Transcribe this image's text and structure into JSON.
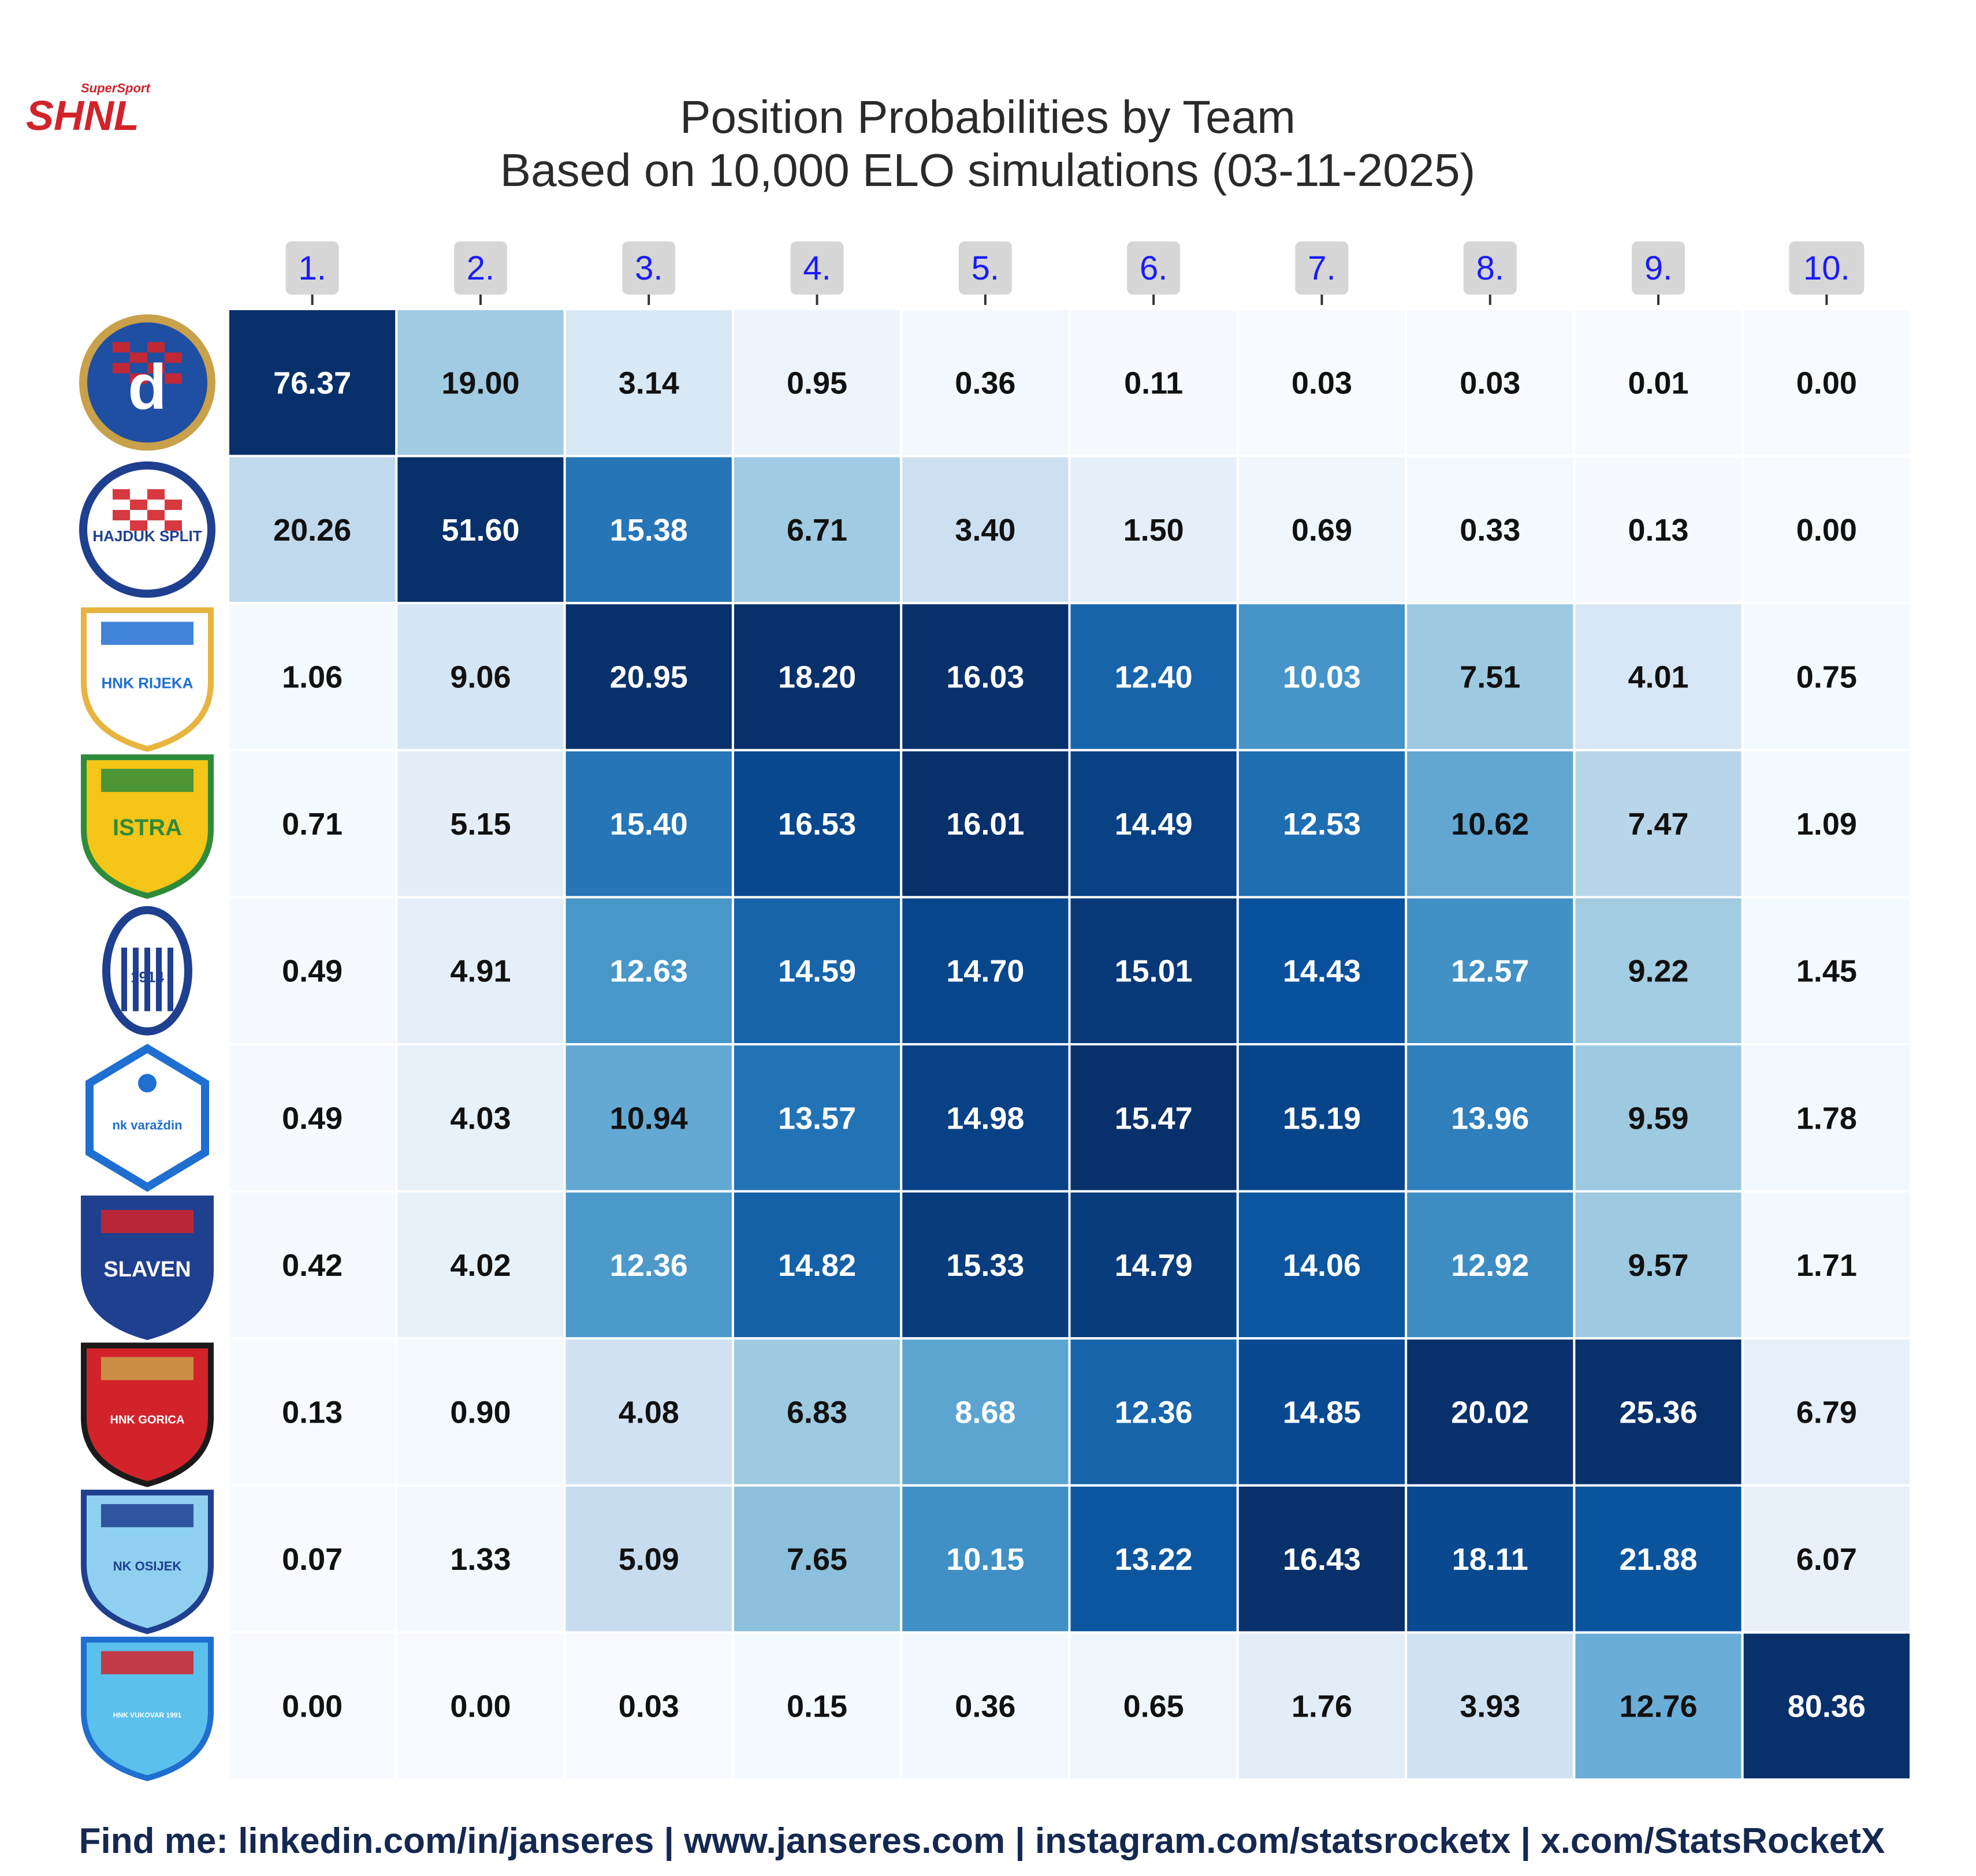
{
  "brand": {
    "logo_super": "SuperSport",
    "logo_main": "SHNL",
    "logo_color": "#d2232a"
  },
  "chart_data": {
    "type": "heatmap",
    "title": "Position Probabilities by Team",
    "subtitle": "Based on 10,000 ELO simulations (03-11-2025)",
    "columns": [
      "1.",
      "2.",
      "3.",
      "4.",
      "5.",
      "6.",
      "7.",
      "8.",
      "9.",
      "10."
    ],
    "rows": [
      {
        "team": "Dinamo Zagreb",
        "crest_text": "d",
        "values": [
          76.37,
          19.0,
          3.14,
          0.95,
          0.36,
          0.11,
          0.03,
          0.03,
          0.01,
          0.0
        ]
      },
      {
        "team": "Hajduk Split",
        "crest_text": "HAJDUK SPLIT",
        "values": [
          20.26,
          51.6,
          15.38,
          6.71,
          3.4,
          1.5,
          0.69,
          0.33,
          0.13,
          0.0
        ]
      },
      {
        "team": "HNK Rijeka",
        "crest_text": "HNK RIJEKA",
        "values": [
          1.06,
          9.06,
          20.95,
          18.2,
          16.03,
          12.4,
          10.03,
          7.51,
          4.01,
          0.75
        ]
      },
      {
        "team": "NK Istra 1961",
        "crest_text": "ISTRA",
        "values": [
          0.71,
          5.15,
          15.4,
          16.53,
          16.01,
          14.49,
          12.53,
          10.62,
          7.47,
          1.09
        ]
      },
      {
        "team": "NK Lokomotiva Zagreb",
        "crest_text": "1914",
        "values": [
          0.49,
          4.91,
          12.63,
          14.59,
          14.7,
          15.01,
          14.43,
          12.57,
          9.22,
          1.45
        ]
      },
      {
        "team": "NK Varaždin",
        "crest_text": "nk varaždin",
        "values": [
          0.49,
          4.03,
          10.94,
          13.57,
          14.98,
          15.47,
          15.19,
          13.96,
          9.59,
          1.78
        ]
      },
      {
        "team": "Slaven Belupo",
        "crest_text": "SLAVEN",
        "values": [
          0.42,
          4.02,
          12.36,
          14.82,
          15.33,
          14.79,
          14.06,
          12.92,
          9.57,
          1.71
        ]
      },
      {
        "team": "HNK Gorica",
        "crest_text": "HNK GORICA",
        "values": [
          0.13,
          0.9,
          4.08,
          6.83,
          8.68,
          12.36,
          14.85,
          20.02,
          25.36,
          6.79
        ]
      },
      {
        "team": "NK Osijek",
        "crest_text": "NK OSIJEK",
        "values": [
          0.07,
          1.33,
          5.09,
          7.65,
          10.15,
          13.22,
          16.43,
          18.11,
          21.88,
          6.07
        ]
      },
      {
        "team": "HNK Vukovar 1991",
        "crest_text": "HNK VUKOVAR 1991",
        "values": [
          0.0,
          0.0,
          0.03,
          0.15,
          0.36,
          0.65,
          1.76,
          3.93,
          12.76,
          80.36
        ]
      }
    ],
    "colormap": "Blues",
    "color_scale_per_column": true,
    "value_format": "2 decimals",
    "legend": "none"
  },
  "footer": {
    "text": "Find me: linkedin.com/in/janseres | www.janseres.com | instagram.com/statsrocketx | x.com/StatsRocketX"
  }
}
